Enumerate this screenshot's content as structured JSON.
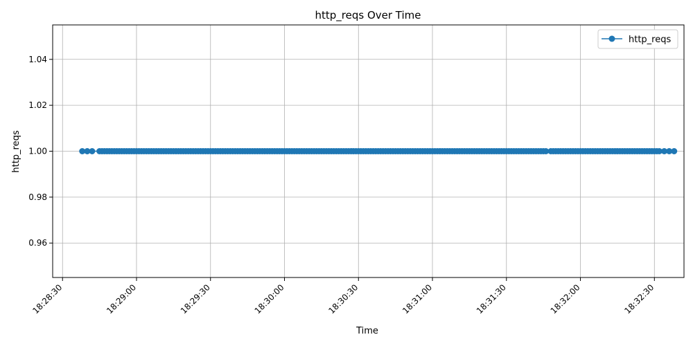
{
  "chart_data": {
    "type": "line",
    "title": "http_reqs Over Time",
    "xlabel": "Time",
    "ylabel": "http_reqs",
    "x_tick_labels": [
      "18:28:30",
      "18:29:00",
      "18:29:30",
      "18:30:00",
      "18:30:30",
      "18:31:00",
      "18:31:30",
      "18:32:00",
      "18:32:30"
    ],
    "y_tick_labels": [
      "0.96",
      "0.98",
      "1.00",
      "1.02",
      "1.04"
    ],
    "y_ticks": [
      0.96,
      0.98,
      1.0,
      1.02,
      1.04
    ],
    "ylim": [
      0.945,
      1.055
    ],
    "xlim": [
      "18:28:26",
      "18:32:42"
    ],
    "grid": true,
    "legend_position": "top-right",
    "series": [
      {
        "name": "http_reqs",
        "color": "#1f77b4",
        "marker": "circle",
        "x_start": "18:28:38",
        "x_end": "18:32:38",
        "y_constant": 1.0,
        "x": [
          "18:28:38",
          "18:28:40",
          "18:28:42",
          "18:28:45",
          "18:28:46",
          "18:28:47",
          "18:28:48",
          "18:28:49",
          "18:28:50",
          "18:28:51",
          "18:28:52",
          "18:28:53",
          "18:28:54",
          "18:28:55",
          "18:28:56",
          "18:28:57",
          "18:28:58",
          "18:28:59",
          "18:29:00",
          "18:29:01",
          "18:29:02",
          "18:29:03",
          "18:29:04",
          "18:29:05",
          "18:29:06",
          "18:29:07",
          "18:29:08",
          "18:29:09",
          "18:29:10",
          "18:29:11",
          "18:29:12",
          "18:29:13",
          "18:29:14",
          "18:29:15",
          "18:29:16",
          "18:29:17",
          "18:29:18",
          "18:29:19",
          "18:29:20",
          "18:29:21",
          "18:29:22",
          "18:29:23",
          "18:29:24",
          "18:29:25",
          "18:29:26",
          "18:29:27",
          "18:29:28",
          "18:29:29",
          "18:29:30",
          "18:29:31",
          "18:29:32",
          "18:29:33",
          "18:29:34",
          "18:29:35",
          "18:29:36",
          "18:29:37",
          "18:29:38",
          "18:29:39",
          "18:29:40",
          "18:29:41",
          "18:29:42",
          "18:29:43",
          "18:29:44",
          "18:29:45",
          "18:29:46",
          "18:29:47",
          "18:29:48",
          "18:29:49",
          "18:29:50",
          "18:29:51",
          "18:29:52",
          "18:29:53",
          "18:29:54",
          "18:29:55",
          "18:29:56",
          "18:29:57",
          "18:29:58",
          "18:29:59",
          "18:30:00",
          "18:30:01",
          "18:30:02",
          "18:30:03",
          "18:30:04",
          "18:30:05",
          "18:30:06",
          "18:30:07",
          "18:30:08",
          "18:30:09",
          "18:30:10",
          "18:30:11",
          "18:30:12",
          "18:30:13",
          "18:30:14",
          "18:30:15",
          "18:30:16",
          "18:30:17",
          "18:30:18",
          "18:30:19",
          "18:30:20",
          "18:30:21",
          "18:30:22",
          "18:30:23",
          "18:30:24",
          "18:30:25",
          "18:30:26",
          "18:30:27",
          "18:30:28",
          "18:30:29",
          "18:30:30",
          "18:30:31",
          "18:30:32",
          "18:30:33",
          "18:30:34",
          "18:30:35",
          "18:30:36",
          "18:30:37",
          "18:30:38",
          "18:30:39",
          "18:30:40",
          "18:30:41",
          "18:30:42",
          "18:30:43",
          "18:30:44",
          "18:30:45",
          "18:30:46",
          "18:30:47",
          "18:30:48",
          "18:30:49",
          "18:30:50",
          "18:30:51",
          "18:30:52",
          "18:30:53",
          "18:30:54",
          "18:30:55",
          "18:30:56",
          "18:30:57",
          "18:30:58",
          "18:30:59",
          "18:31:00",
          "18:31:01",
          "18:31:02",
          "18:31:03",
          "18:31:04",
          "18:31:05",
          "18:31:06",
          "18:31:07",
          "18:31:08",
          "18:31:09",
          "18:31:10",
          "18:31:11",
          "18:31:12",
          "18:31:13",
          "18:31:14",
          "18:31:15",
          "18:31:16",
          "18:31:17",
          "18:31:18",
          "18:31:19",
          "18:31:20",
          "18:31:21",
          "18:31:22",
          "18:31:23",
          "18:31:24",
          "18:31:25",
          "18:31:26",
          "18:31:27",
          "18:31:28",
          "18:31:29",
          "18:31:30",
          "18:31:31",
          "18:31:32",
          "18:31:33",
          "18:31:34",
          "18:31:35",
          "18:31:36",
          "18:31:37",
          "18:31:38",
          "18:31:39",
          "18:31:40",
          "18:31:41",
          "18:31:42",
          "18:31:43",
          "18:31:44",
          "18:31:45",
          "18:31:46",
          "18:31:48",
          "18:31:49",
          "18:31:50",
          "18:31:51",
          "18:31:52",
          "18:31:53",
          "18:31:54",
          "18:31:55",
          "18:31:56",
          "18:31:57",
          "18:31:58",
          "18:31:59",
          "18:32:00",
          "18:32:01",
          "18:32:02",
          "18:32:03",
          "18:32:04",
          "18:32:05",
          "18:32:06",
          "18:32:07",
          "18:32:08",
          "18:32:09",
          "18:32:10",
          "18:32:11",
          "18:32:12",
          "18:32:13",
          "18:32:14",
          "18:32:15",
          "18:32:16",
          "18:32:17",
          "18:32:18",
          "18:32:19",
          "18:32:20",
          "18:32:21",
          "18:32:22",
          "18:32:23",
          "18:32:24",
          "18:32:25",
          "18:32:26",
          "18:32:27",
          "18:32:28",
          "18:32:29",
          "18:32:30",
          "18:32:31",
          "18:32:32",
          "18:32:34",
          "18:32:36",
          "18:32:38"
        ]
      }
    ]
  }
}
